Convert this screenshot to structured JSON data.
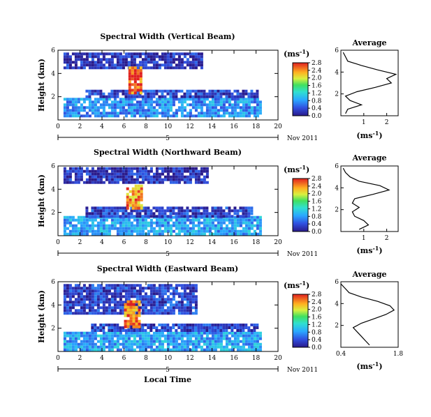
{
  "chart_data": [
    {
      "type": "heatmap",
      "title": "Spectral Width (Vertical Beam)",
      "ylabel": "Height (km)",
      "xlabel": "",
      "xlim": [
        0,
        20
      ],
      "ylim": [
        0,
        6
      ],
      "x_ticks": [
        "0",
        "2",
        "4",
        "6",
        "8",
        "10",
        "12",
        "14",
        "16",
        "18",
        "20"
      ],
      "y_ticks": [
        "2",
        "4",
        "6"
      ],
      "date_label": "Nov 2011",
      "day_label": "5",
      "colorbar": {
        "unit": "(ms",
        "unit_exp": "-1",
        "unit_close": ")",
        "ticks": [
          "0.0",
          "0.4",
          "0.8",
          "1.2",
          "1.6",
          "2.0",
          "2.4",
          "2.8"
        ]
      },
      "layers": [
        {
          "x": [
            0.5,
            18.5
          ],
          "y": [
            0.4,
            1.9
          ],
          "level": 0.7
        },
        {
          "x": [
            2.5,
            18.0
          ],
          "y": [
            1.9,
            2.6
          ],
          "level": 0.3
        },
        {
          "x": [
            0.5,
            13.0
          ],
          "y": [
            4.6,
            5.8
          ],
          "level": 0.2
        },
        {
          "x": [
            6.4,
            7.6
          ],
          "y": [
            2.4,
            4.6
          ],
          "level": 2.6
        }
      ],
      "average": {
        "title": "Average",
        "xlabel": "(ms",
        "xlabel_exp": "-1",
        "xlabel_close": ")",
        "xlim": [
          0,
          2.5
        ],
        "ylim": [
          0,
          6
        ],
        "x_ticks": [
          "1",
          "2"
        ],
        "y_ticks": [
          "2",
          "4",
          "6"
        ],
        "height": [
          0.2,
          0.6,
          1.0,
          1.4,
          1.8,
          2.2,
          2.6,
          3.0,
          3.4,
          3.8,
          4.2,
          4.6,
          5.0,
          5.4,
          5.8
        ],
        "value": [
          0.2,
          0.3,
          0.9,
          0.4,
          0.2,
          0.7,
          1.5,
          2.2,
          2.0,
          2.4,
          1.6,
          0.9,
          0.3,
          0.2,
          0.1
        ]
      }
    },
    {
      "type": "heatmap",
      "title": "Spectral Width (Northward Beam)",
      "ylabel": "Height (km)",
      "xlabel": "",
      "xlim": [
        0,
        20
      ],
      "ylim": [
        0,
        6
      ],
      "x_ticks": [
        "0",
        "2",
        "4",
        "6",
        "8",
        "10",
        "12",
        "14",
        "16",
        "18",
        "20"
      ],
      "y_ticks": [
        "2",
        "4",
        "6"
      ],
      "date_label": "Nov 2011",
      "day_label": "5",
      "colorbar": {
        "unit": "(ms",
        "unit_exp": "-1",
        "unit_close": ")",
        "ticks": [
          "0.0",
          "0.4",
          "0.8",
          "1.2",
          "1.6",
          "2.0",
          "2.4",
          "2.8"
        ]
      },
      "layers": [
        {
          "x": [
            0.5,
            18.5
          ],
          "y": [
            0.2,
            1.7
          ],
          "level": 0.8
        },
        {
          "x": [
            2.5,
            17.5
          ],
          "y": [
            1.7,
            2.5
          ],
          "level": 0.3
        },
        {
          "x": [
            0.5,
            13.5
          ],
          "y": [
            4.6,
            5.9
          ],
          "level": 0.2
        },
        {
          "x": [
            6.2,
            7.6
          ],
          "y": [
            2.3,
            4.4
          ],
          "level": 2.4
        }
      ],
      "average": {
        "title": "Average",
        "xlabel": "(ms",
        "xlabel_exp": "-1",
        "xlabel_close": ")",
        "xlim": [
          0,
          2.5
        ],
        "ylim": [
          0,
          6
        ],
        "x_ticks": [
          "1",
          "2"
        ],
        "y_ticks": [
          "2",
          "4",
          "6"
        ],
        "height": [
          0.2,
          0.6,
          1.0,
          1.4,
          1.8,
          2.2,
          2.6,
          3.0,
          3.4,
          3.8,
          4.2,
          4.6,
          5.0,
          5.4,
          5.8
        ],
        "value": [
          0.8,
          1.2,
          1.0,
          0.6,
          0.5,
          0.8,
          0.5,
          0.6,
          1.4,
          2.1,
          1.7,
          0.8,
          0.4,
          0.2,
          0.1
        ]
      }
    },
    {
      "type": "heatmap",
      "title": "Spectral Width (Eastward Beam)",
      "ylabel": "Height (km)",
      "xlabel": "Local Time",
      "xlim": [
        0,
        20
      ],
      "ylim": [
        0,
        6
      ],
      "x_ticks": [
        "0",
        "2",
        "4",
        "6",
        "8",
        "10",
        "12",
        "14",
        "16",
        "18",
        "20"
      ],
      "y_ticks": [
        "2",
        "4",
        "6"
      ],
      "date_label": "Nov 2011",
      "day_label": "5",
      "colorbar": {
        "unit": "(ms",
        "unit_exp": "-1",
        "unit_close": ")",
        "ticks": [
          "0.0",
          "0.4",
          "0.8",
          "1.2",
          "1.6",
          "2.0",
          "2.4",
          "2.8"
        ]
      },
      "layers": [
        {
          "x": [
            0.5,
            18.5
          ],
          "y": [
            0.1,
            1.7
          ],
          "level": 0.8
        },
        {
          "x": [
            3.0,
            18.0
          ],
          "y": [
            1.7,
            2.4
          ],
          "level": 0.3
        },
        {
          "x": [
            0.5,
            12.5
          ],
          "y": [
            3.2,
            5.8
          ],
          "level": 0.3
        },
        {
          "x": [
            6.0,
            7.5
          ],
          "y": [
            2.2,
            4.4
          ],
          "level": 2.5
        }
      ],
      "average": {
        "title": "Average",
        "xlabel": "(ms",
        "xlabel_exp": "-1",
        "xlabel_close": ")",
        "xlim": [
          0.4,
          1.8
        ],
        "ylim": [
          0,
          6
        ],
        "x_ticks": [
          "0.4",
          "1.8"
        ],
        "y_ticks": [
          "2",
          "4",
          "6"
        ],
        "height": [
          0.2,
          0.6,
          1.0,
          1.4,
          1.8,
          2.2,
          2.6,
          3.0,
          3.4,
          3.8,
          4.2,
          4.6,
          5.0,
          5.4,
          5.8
        ],
        "value": [
          1.1,
          1.0,
          0.9,
          0.8,
          0.7,
          0.9,
          1.2,
          1.5,
          1.7,
          1.6,
          1.3,
          0.9,
          0.6,
          0.5,
          0.4
        ]
      }
    }
  ],
  "colors": {
    "axis": "#000000",
    "background": "#ffffff",
    "average_line": "#000000"
  }
}
